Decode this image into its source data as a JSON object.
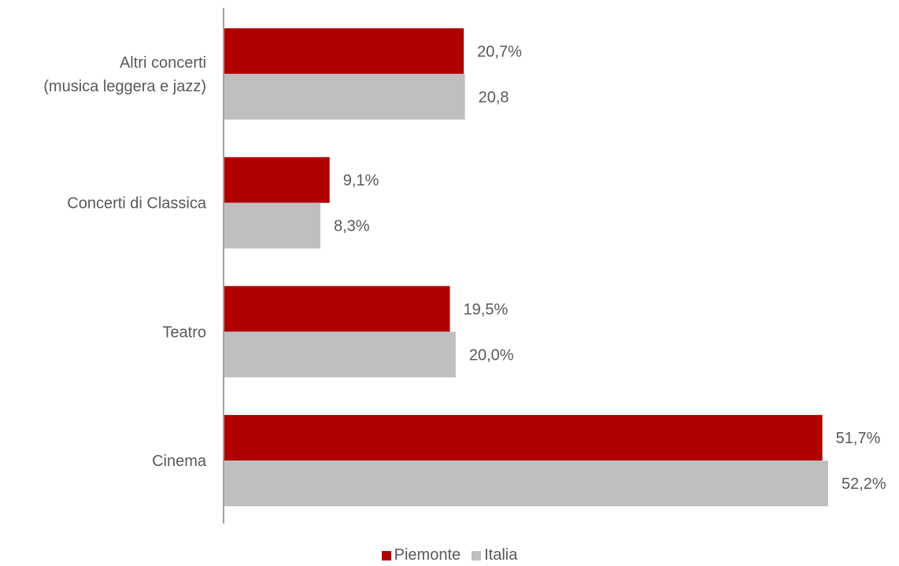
{
  "chart_data": {
    "type": "bar",
    "orientation": "horizontal",
    "categories": [
      [
        "Altri concerti",
        "(musica leggera e jazz)"
      ],
      [
        "Concerti di Classica"
      ],
      [
        "Teatro"
      ],
      [
        "Cinema"
      ]
    ],
    "series": [
      {
        "name": "Piemonte",
        "color": "#b00000",
        "values": [
          20.7,
          9.1,
          19.5,
          51.7
        ],
        "labels": [
          "20,7%",
          "9,1%",
          "19,5%",
          "51,7%"
        ]
      },
      {
        "name": "Italia",
        "color": "#bfbfbf",
        "values": [
          20.8,
          8.3,
          20.0,
          52.2
        ],
        "labels": [
          "20,8",
          "8,3%",
          "20,0%",
          "52,2%"
        ]
      }
    ],
    "xlim": [
      0,
      53
    ],
    "grid": false,
    "legend_position": "bottom"
  }
}
